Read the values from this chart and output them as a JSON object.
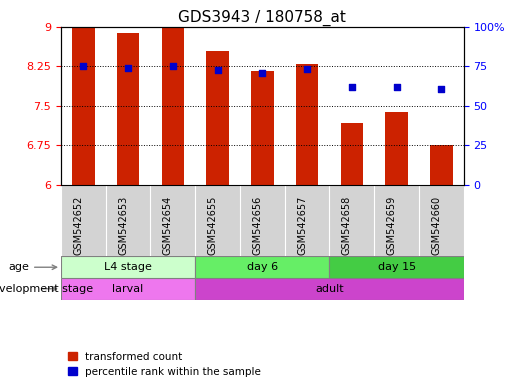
{
  "title": "GDS3943 / 180758_at",
  "samples": [
    "GSM542652",
    "GSM542653",
    "GSM542654",
    "GSM542655",
    "GSM542656",
    "GSM542657",
    "GSM542658",
    "GSM542659",
    "GSM542660"
  ],
  "bar_values": [
    9.0,
    8.88,
    9.0,
    8.55,
    8.17,
    8.29,
    7.17,
    7.38,
    6.75
  ],
  "percentile_values": [
    8.25,
    8.22,
    8.25,
    8.18,
    8.12,
    8.19,
    7.85,
    7.86,
    7.82
  ],
  "bar_color": "#cc2200",
  "dot_color": "#0000cc",
  "ylim_left": [
    6.0,
    9.0
  ],
  "ylim_right": [
    0,
    100
  ],
  "yticks_left": [
    6.0,
    6.75,
    7.5,
    8.25,
    9.0
  ],
  "ytick_labels_left": [
    "6",
    "6.75",
    "7.5",
    "8.25",
    "9"
  ],
  "yticks_right": [
    0,
    25,
    50,
    75,
    100
  ],
  "ytick_labels_right": [
    "0",
    "25",
    "50",
    "75",
    "100%"
  ],
  "hline_values": [
    6.75,
    7.5,
    8.25
  ],
  "age_groups": [
    {
      "label": "L4 stage",
      "start": 0,
      "end": 3,
      "color": "#ccffcc"
    },
    {
      "label": "day 6",
      "start": 3,
      "end": 6,
      "color": "#66ee66"
    },
    {
      "label": "day 15",
      "start": 6,
      "end": 9,
      "color": "#44cc44"
    }
  ],
  "dev_groups": [
    {
      "label": "larval",
      "start": 0,
      "end": 3,
      "color": "#ee77ee"
    },
    {
      "label": "adult",
      "start": 3,
      "end": 9,
      "color": "#cc44cc"
    }
  ],
  "legend_bar_label": "transformed count",
  "legend_dot_label": "percentile rank within the sample",
  "age_label": "age",
  "dev_label": "development stage",
  "title_fontsize": 11,
  "tick_fontsize": 8,
  "bar_width": 0.5,
  "xtick_bg_color": "#d3d3d3"
}
